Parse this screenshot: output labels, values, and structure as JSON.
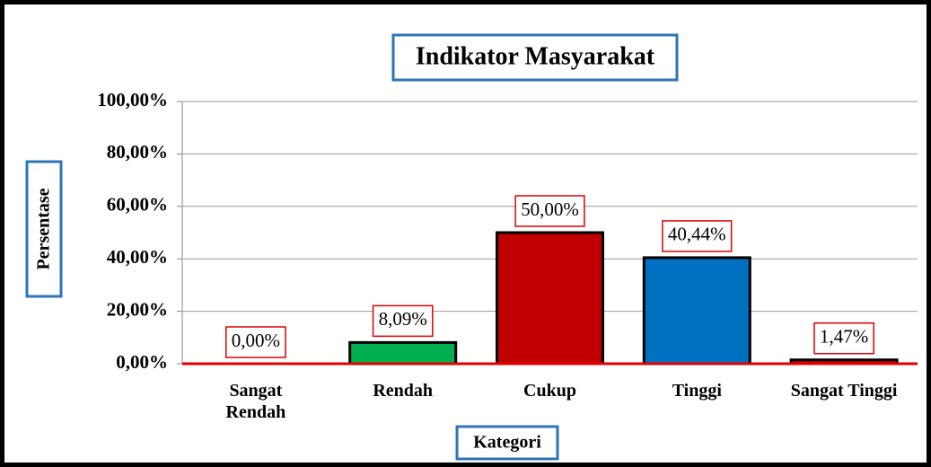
{
  "chart_data": {
    "type": "bar",
    "title": "Indikator Masyarakat",
    "x_label": "Kategori",
    "y_label": "Persentase",
    "categories": [
      "Sangat Rendah",
      "Rendah",
      "Cukup",
      "Tinggi",
      "Sangat Tinggi"
    ],
    "values": [
      0,
      8.09,
      50,
      40.44,
      1.47
    ],
    "value_labels": [
      "0,00%",
      "8,09%",
      "50,00%",
      "40,44%",
      "1,47%"
    ],
    "colors": [
      "#c00000",
      "#00b050",
      "#c00000",
      "#0070c0",
      "#c00000"
    ],
    "ylim": [
      0,
      100
    ],
    "yticks": [
      {
        "value": 0,
        "label": "0,00%"
      },
      {
        "value": 20,
        "label": "20,00%"
      },
      {
        "value": 40,
        "label": "40,00%"
      },
      {
        "value": 60,
        "label": "60,00%"
      },
      {
        "value": 80,
        "label": "80,00%"
      },
      {
        "value": 100,
        "label": "100,00%"
      }
    ],
    "grid": true
  }
}
